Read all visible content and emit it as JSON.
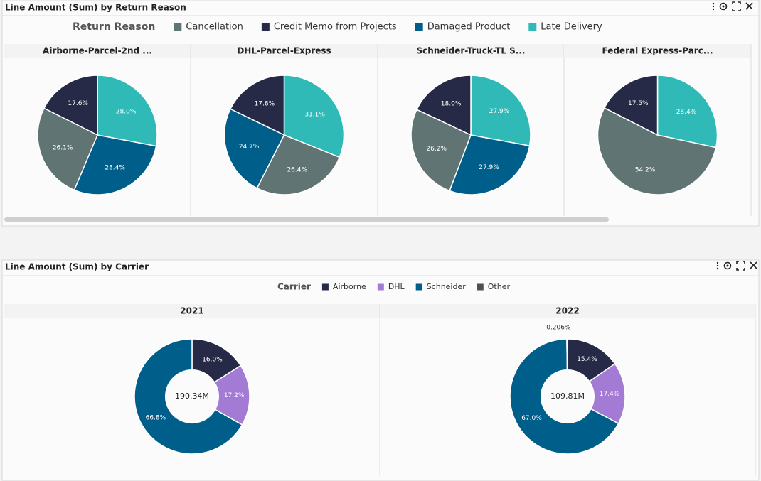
{
  "panels": [
    {
      "title": "Line Amount (Sum) by Return Reason",
      "legend": {
        "title": "Return Reason",
        "items": [
          {
            "name": "Cancellation",
            "color": "#5f7473"
          },
          {
            "name": "Credit Memo from Projects",
            "color": "#262a47"
          },
          {
            "name": "Damaged Product",
            "color": "#005f8a"
          },
          {
            "name": "Late Delivery",
            "color": "#2fbab8"
          }
        ]
      }
    },
    {
      "title": "Line Amount (Sum) by Carrier",
      "legend": {
        "title": "Carrier",
        "items": [
          {
            "name": "Airborne",
            "color": "#262a47"
          },
          {
            "name": "DHL",
            "color": "#a47bd4"
          },
          {
            "name": "Schneider",
            "color": "#005f8a"
          },
          {
            "name": "Other",
            "color": "#4f4f4f"
          }
        ]
      }
    }
  ],
  "chart_data": [
    {
      "type": "pie",
      "title": "Airborne-Parcel-2nd ...",
      "categories": [
        "Late Delivery",
        "Damaged Product",
        "Cancellation",
        "Credit Memo from Projects"
      ],
      "values": [
        28.0,
        28.4,
        26.1,
        17.6
      ],
      "value_labels": [
        "28.0%",
        "28.4%",
        "26.1%",
        "17.6%"
      ]
    },
    {
      "type": "pie",
      "title": "DHL-Parcel-Express",
      "categories": [
        "Late Delivery",
        "Cancellation",
        "Damaged Product",
        "Credit Memo from Projects"
      ],
      "values": [
        31.1,
        26.4,
        24.7,
        17.8
      ],
      "value_labels": [
        "31.1%",
        "26.4%",
        "24.7%",
        "17.8%"
      ]
    },
    {
      "type": "pie",
      "title": "Schneider-Truck-TL S...",
      "categories": [
        "Late Delivery",
        "Damaged Product",
        "Cancellation",
        "Credit Memo from Projects"
      ],
      "values": [
        27.9,
        27.9,
        26.2,
        18.0
      ],
      "value_labels": [
        "27.9%",
        "27.9%",
        "26.2%",
        "18.0%"
      ]
    },
    {
      "type": "pie",
      "title": "Federal Express-Parc...",
      "categories": [
        "Late Delivery",
        "Cancellation",
        "Credit Memo from Projects"
      ],
      "values": [
        28.4,
        54.2,
        17.5
      ],
      "value_labels": [
        "28.4%",
        "54.2%",
        "17.5%"
      ]
    },
    {
      "type": "donut",
      "title": "2021",
      "center_label": "190.34M",
      "categories": [
        "Airborne",
        "DHL",
        "Schneider"
      ],
      "values": [
        16.0,
        17.2,
        66.8
      ],
      "value_labels": [
        "16.0%",
        "17.2%",
        "66.8%"
      ]
    },
    {
      "type": "donut",
      "title": "2022",
      "center_label": "109.81M",
      "categories": [
        "Airborne",
        "DHL",
        "Schneider",
        "Other"
      ],
      "values": [
        15.4,
        17.4,
        67.0,
        0.206
      ],
      "value_labels": [
        "15.4%",
        "17.4%",
        "67.0%",
        "0.206%"
      ]
    }
  ]
}
